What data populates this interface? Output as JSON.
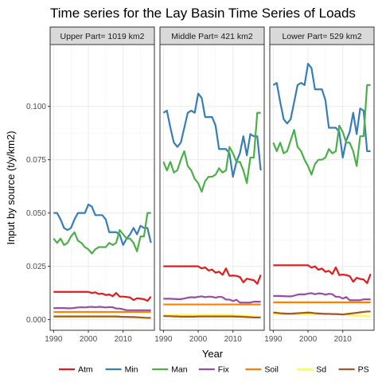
{
  "chart_data": {
    "type": "line",
    "title": "Time series for the Lay Basin Time Series of Loads",
    "xlabel": "Year",
    "ylabel": "Input by source (t/y/km2)",
    "xlim": [
      1989,
      2019
    ],
    "ylim": [
      -0.005,
      0.129
    ],
    "x_ticks": [
      1990,
      2000,
      2010
    ],
    "x_tick_labels": [
      "1990",
      "2000",
      "2010"
    ],
    "y_ticks": [
      0,
      0.025,
      0.05,
      0.075,
      0.1
    ],
    "y_tick_labels": [
      "0.000",
      "0.025",
      "0.050",
      "0.075",
      "0.100"
    ],
    "grid": true,
    "legend_position": "bottom",
    "x": [
      1990,
      1991,
      1992,
      1993,
      1994,
      1995,
      1996,
      1997,
      1998,
      1999,
      2000,
      2001,
      2002,
      2003,
      2004,
      2005,
      2006,
      2007,
      2008,
      2009,
      2010,
      2011,
      2012,
      2013,
      2014,
      2015,
      2016,
      2017,
      2018
    ],
    "series_meta": [
      {
        "name": "Atm",
        "color": "#e41a1c"
      },
      {
        "name": "Min",
        "color": "#377eb8"
      },
      {
        "name": "Man",
        "color": "#4daf4a"
      },
      {
        "name": "Fix",
        "color": "#984ea3"
      },
      {
        "name": "Soil",
        "color": "#ff7f00"
      },
      {
        "name": "Sd",
        "color": "#ffff33"
      },
      {
        "name": "PS",
        "color": "#a65628"
      }
    ],
    "panels": [
      {
        "label": "Upper Part= 1019 km2",
        "series": [
          {
            "name": "Atm",
            "values": [
              0.013,
              0.013,
              0.013,
              0.013,
              0.013,
              0.013,
              0.013,
              0.013,
              0.013,
              0.013,
              0.013,
              0.0125,
              0.0128,
              0.012,
              0.0122,
              0.0115,
              0.0118,
              0.011,
              0.0125,
              0.0108,
              0.0108,
              0.0106,
              0.0104,
              0.0092,
              0.01,
              0.0098,
              0.0096,
              0.0088,
              0.0108
            ]
          },
          {
            "name": "Min",
            "values": [
              0.05,
              0.05,
              0.047,
              0.043,
              0.042,
              0.043,
              0.047,
              0.05,
              0.05,
              0.05,
              0.054,
              0.053,
              0.049,
              0.049,
              0.049,
              0.047,
              0.041,
              0.041,
              0.041,
              0.04,
              0.035,
              0.038,
              0.04,
              0.043,
              0.04,
              0.044,
              0.043,
              0.043,
              0.036
            ]
          },
          {
            "name": "Man",
            "values": [
              0.038,
              0.036,
              0.038,
              0.035,
              0.036,
              0.039,
              0.041,
              0.037,
              0.036,
              0.034,
              0.033,
              0.031,
              0.033,
              0.034,
              0.034,
              0.034,
              0.036,
              0.035,
              0.036,
              0.042,
              0.04,
              0.038,
              0.038,
              0.036,
              0.032,
              0.039,
              0.039,
              0.05,
              0.05
            ]
          },
          {
            "name": "Fix",
            "values": [
              0.0054,
              0.0054,
              0.0054,
              0.0054,
              0.0053,
              0.0053,
              0.0055,
              0.0057,
              0.0058,
              0.0057,
              0.0059,
              0.006,
              0.0058,
              0.006,
              0.0059,
              0.0057,
              0.0059,
              0.0058,
              0.0052,
              0.0052,
              0.0048,
              0.0044,
              0.0044,
              0.0044,
              0.0044,
              0.0044,
              0.0044,
              0.0044,
              0.0044
            ]
          },
          {
            "name": "Soil",
            "values": [
              0.0036,
              0.0036,
              0.0036,
              0.0036,
              0.0036,
              0.0036,
              0.0036,
              0.0036,
              0.0036,
              0.0036,
              0.0036,
              0.0036,
              0.0036,
              0.0036,
              0.0036,
              0.0036,
              0.0036,
              0.0036,
              0.0036,
              0.0036,
              0.0036,
              0.0036,
              0.0036,
              0.0036,
              0.0036,
              0.0036,
              0.0036,
              0.0036,
              0.0036
            ]
          },
          {
            "name": "Sd",
            "values": [
              0.0012,
              0.0012,
              0.0012,
              0.0012,
              0.0012,
              0.0012,
              0.0012,
              0.0012,
              0.0012,
              0.0012,
              0.0012,
              0.0012,
              0.0012,
              0.0012,
              0.0012,
              0.0012,
              0.0012,
              0.0012,
              0.0012,
              0.0012,
              0.0012,
              0.0011,
              0.001,
              0.001,
              0.0009,
              0.0009,
              0.0008,
              0.0008,
              0.0008
            ]
          },
          {
            "name": "PS",
            "values": [
              0.0015,
              0.0015,
              0.0015,
              0.0015,
              0.0015,
              0.0015,
              0.0015,
              0.0015,
              0.0015,
              0.0015,
              0.0015,
              0.0015,
              0.0015,
              0.0015,
              0.0015,
              0.0015,
              0.0015,
              0.0015,
              0.0015,
              0.0014,
              0.0013,
              0.0013,
              0.0012,
              0.0012,
              0.0011,
              0.001,
              0.0009,
              0.0008,
              0.0008
            ]
          }
        ]
      },
      {
        "label": "Middle Part= 421 km2",
        "series": [
          {
            "name": "Atm",
            "values": [
              0.025,
              0.025,
              0.025,
              0.025,
              0.025,
              0.025,
              0.025,
              0.025,
              0.025,
              0.025,
              0.025,
              0.024,
              0.0245,
              0.023,
              0.0235,
              0.022,
              0.0225,
              0.021,
              0.024,
              0.0205,
              0.0207,
              0.0205,
              0.02,
              0.0175,
              0.0192,
              0.0188,
              0.0185,
              0.0168,
              0.021
            ]
          },
          {
            "name": "Min",
            "values": [
              0.097,
              0.098,
              0.09,
              0.083,
              0.081,
              0.083,
              0.09,
              0.097,
              0.098,
              0.097,
              0.106,
              0.104,
              0.095,
              0.095,
              0.095,
              0.091,
              0.08,
              0.08,
              0.08,
              0.078,
              0.067,
              0.074,
              0.078,
              0.086,
              0.077,
              0.087,
              0.086,
              0.086,
              0.07
            ]
          },
          {
            "name": "Man",
            "values": [
              0.074,
              0.07,
              0.074,
              0.069,
              0.07,
              0.075,
              0.079,
              0.072,
              0.07,
              0.066,
              0.064,
              0.06,
              0.065,
              0.067,
              0.067,
              0.068,
              0.071,
              0.069,
              0.07,
              0.081,
              0.078,
              0.074,
              0.074,
              0.07,
              0.064,
              0.076,
              0.076,
              0.097,
              0.097
            ]
          },
          {
            "name": "Fix",
            "values": [
              0.0098,
              0.0098,
              0.0098,
              0.0097,
              0.0096,
              0.0096,
              0.0099,
              0.0103,
              0.0105,
              0.0104,
              0.0107,
              0.0109,
              0.0105,
              0.0108,
              0.0107,
              0.0103,
              0.0107,
              0.0105,
              0.0094,
              0.0094,
              0.0087,
              0.0093,
              0.008,
              0.008,
              0.008,
              0.008,
              0.0084,
              0.0084,
              0.0084
            ]
          },
          {
            "name": "Soil",
            "values": [
              0.0071,
              0.0071,
              0.0071,
              0.0071,
              0.0071,
              0.0071,
              0.0071,
              0.0071,
              0.0071,
              0.0071,
              0.0071,
              0.0071,
              0.0071,
              0.0071,
              0.0071,
              0.0071,
              0.0071,
              0.0071,
              0.0071,
              0.0071,
              0.0071,
              0.0071,
              0.0071,
              0.0071,
              0.0071,
              0.0071,
              0.0071,
              0.0071,
              0.0071
            ]
          },
          {
            "name": "Sd",
            "values": [
              0.0022,
              0.0022,
              0.0022,
              0.0022,
              0.0022,
              0.0022,
              0.0022,
              0.0022,
              0.0022,
              0.0022,
              0.0022,
              0.0022,
              0.0022,
              0.0022,
              0.0022,
              0.0022,
              0.0022,
              0.0022,
              0.0022,
              0.0022,
              0.0022,
              0.002,
              0.0019,
              0.0018,
              0.0017,
              0.0016,
              0.0015,
              0.0014,
              0.0014
            ]
          },
          {
            "name": "PS",
            "values": [
              0.0017,
              0.0016,
              0.0016,
              0.0015,
              0.0015,
              0.0014,
              0.0014,
              0.0014,
              0.0014,
              0.0014,
              0.0015,
              0.0015,
              0.0015,
              0.0015,
              0.0015,
              0.0015,
              0.0015,
              0.0015,
              0.0015,
              0.0015,
              0.0015,
              0.0014,
              0.0014,
              0.0013,
              0.0012,
              0.0011,
              0.001,
              0.001,
              0.001
            ]
          }
        ]
      },
      {
        "label": "Lower Part= 529 km2",
        "series": [
          {
            "name": "Atm",
            "values": [
              0.0255,
              0.0255,
              0.0255,
              0.0255,
              0.0255,
              0.0255,
              0.0255,
              0.0255,
              0.0255,
              0.0255,
              0.0255,
              0.0244,
              0.025,
              0.0234,
              0.024,
              0.0224,
              0.0229,
              0.0214,
              0.0245,
              0.0209,
              0.0211,
              0.0209,
              0.0204,
              0.0178,
              0.0196,
              0.0191,
              0.0188,
              0.0171,
              0.0214
            ]
          },
          {
            "name": "Min",
            "values": [
              0.11,
              0.111,
              0.102,
              0.094,
              0.092,
              0.094,
              0.102,
              0.11,
              0.111,
              0.11,
              0.12,
              0.118,
              0.108,
              0.108,
              0.108,
              0.103,
              0.09,
              0.09,
              0.09,
              0.088,
              0.076,
              0.084,
              0.088,
              0.097,
              0.087,
              0.099,
              0.098,
              0.079,
              0.079
            ]
          },
          {
            "name": "Man",
            "values": [
              0.083,
              0.079,
              0.083,
              0.078,
              0.079,
              0.084,
              0.089,
              0.081,
              0.079,
              0.075,
              0.072,
              0.068,
              0.073,
              0.075,
              0.075,
              0.076,
              0.08,
              0.078,
              0.079,
              0.091,
              0.088,
              0.083,
              0.083,
              0.079,
              0.072,
              0.086,
              0.086,
              0.11,
              0.11
            ]
          },
          {
            "name": "Fix",
            "values": [
              0.0111,
              0.0111,
              0.0111,
              0.011,
              0.0109,
              0.0109,
              0.0112,
              0.0117,
              0.0119,
              0.0118,
              0.0122,
              0.0124,
              0.0119,
              0.0123,
              0.0122,
              0.0117,
              0.0121,
              0.0119,
              0.0107,
              0.0107,
              0.0099,
              0.0106,
              0.0091,
              0.0091,
              0.0091,
              0.0091,
              0.0095,
              0.0095,
              0.0095
            ]
          },
          {
            "name": "Soil",
            "values": [
              0.0081,
              0.0081,
              0.0081,
              0.0081,
              0.0081,
              0.0081,
              0.0081,
              0.0081,
              0.0081,
              0.0081,
              0.0081,
              0.0081,
              0.0081,
              0.0081,
              0.0081,
              0.0081,
              0.0081,
              0.0081,
              0.0081,
              0.0081,
              0.0081,
              0.0081,
              0.0081,
              0.0081,
              0.0081,
              0.0081,
              0.0081,
              0.0081,
              0.0081
            ]
          },
          {
            "name": "Sd",
            "values": [
              0.0025,
              0.0025,
              0.0025,
              0.0025,
              0.0025,
              0.0025,
              0.0025,
              0.0025,
              0.0025,
              0.0025,
              0.0025,
              0.0025,
              0.0025,
              0.0025,
              0.0025,
              0.0025,
              0.0025,
              0.0025,
              0.0025,
              0.0025,
              0.0025,
              0.0023,
              0.0022,
              0.0021,
              0.0019,
              0.0018,
              0.0017,
              0.0016,
              0.0016
            ]
          },
          {
            "name": "PS",
            "values": [
              0.0033,
              0.0032,
              0.003,
              0.0029,
              0.0028,
              0.0028,
              0.0029,
              0.003,
              0.0031,
              0.0032,
              0.0033,
              0.0032,
              0.003,
              0.0029,
              0.0028,
              0.0027,
              0.0027,
              0.0026,
              0.0026,
              0.0025,
              0.0024,
              0.0026,
              0.0028,
              0.003,
              0.0032,
              0.0034,
              0.0036,
              0.0038,
              0.0038
            ]
          }
        ]
      }
    ]
  }
}
